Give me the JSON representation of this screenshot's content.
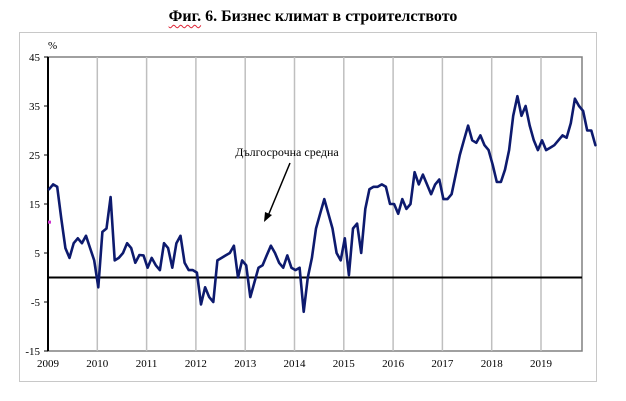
{
  "title_prefix": "Фиг.",
  "title_rest": " 6. Бизнес климат в строителството",
  "chart_data": {
    "type": "line",
    "title": "Фиг. 6. Бизнес климат в строителството",
    "ylabel": "%",
    "xlabel": "",
    "ylim": [
      -15,
      45
    ],
    "yticks": [
      45,
      35,
      25,
      15,
      5,
      -5,
      -15
    ],
    "xticks": [
      "2009",
      "2010",
      "2011",
      "2012",
      "2013",
      "2014",
      "2015",
      "2016",
      "2017",
      "2018",
      "2019"
    ],
    "grid": "vertical gridlines at each year",
    "reference_line": {
      "value": 0,
      "color": "#000000"
    },
    "long_term_average": {
      "value": 11.3,
      "marker_color": "#cc33cc"
    },
    "annotation": {
      "text": "Дългосрочна средна",
      "arrow_to": "long-term average"
    },
    "series": [
      {
        "name": "Бизнес климат в строителството",
        "color": "#0d1a6e",
        "start": "2009-01",
        "frequency": "monthly",
        "values": [
          18,
          19,
          18.5,
          12,
          6,
          4,
          7,
          8,
          7,
          8.5,
          6,
          3.5,
          -2,
          9.3,
          10,
          16.4,
          3.5,
          4,
          5,
          7,
          6,
          3,
          4.6,
          4.5,
          2,
          4,
          2.5,
          1.5,
          7,
          6,
          2,
          7,
          8.5,
          3,
          1.5,
          1.5,
          1,
          -5.5,
          -2,
          -4,
          -5,
          3.5,
          4,
          4.5,
          5,
          6.5,
          0,
          3.5,
          2.5,
          -4,
          -1,
          2,
          2.5,
          4.5,
          6.5,
          5,
          3,
          2,
          4.5,
          2,
          1.5,
          2,
          -7,
          0,
          4,
          10,
          13,
          16,
          13,
          10,
          5,
          3.5,
          8,
          0.5,
          10,
          11,
          5,
          14,
          18,
          18.5,
          18.5,
          19,
          18.5,
          15,
          15,
          13,
          16,
          14,
          15,
          21.5,
          19,
          21,
          19,
          17,
          19,
          20,
          16,
          16,
          17,
          21,
          25,
          28,
          31,
          28,
          27.5,
          29,
          27,
          26,
          23,
          19.5,
          19.5,
          22,
          26,
          33,
          37,
          33,
          35,
          31,
          28,
          26,
          28,
          26,
          26.5,
          27,
          28,
          29,
          28.5,
          31.5,
          36.5,
          35,
          34,
          30,
          30,
          27
        ]
      }
    ]
  }
}
